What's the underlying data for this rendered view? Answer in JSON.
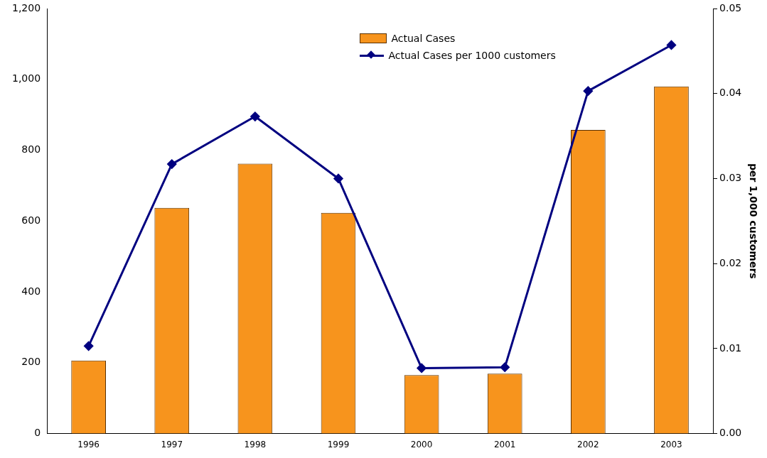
{
  "chart_data": {
    "type": "bar",
    "categories": [
      "1996",
      "1997",
      "1998",
      "1999",
      "2000",
      "2001",
      "2002",
      "2003"
    ],
    "series": [
      {
        "name": "Actual Cases",
        "color": "#f7941d",
        "values": [
          206,
          637,
          762,
          623,
          165,
          169,
          857,
          980
        ]
      },
      {
        "name": "Actual Cases per 1000 customers",
        "type": "line",
        "axis": "y2",
        "color": "#000080",
        "marker": "diamond",
        "values": [
          0.0103,
          0.0317,
          0.0373,
          0.03,
          0.0077,
          0.0078,
          0.0403,
          0.0457
        ]
      }
    ],
    "y2label": "per 1,000 customers",
    "ylim": [
      0,
      1200
    ],
    "yticks": [
      0,
      200,
      400,
      600,
      800,
      {
        "value": 1000,
        "label": "1,000"
      },
      {
        "value": 1200,
        "label": "1,200"
      }
    ],
    "y2lim": [
      0,
      0.05
    ],
    "y2ticks": [
      {
        "value": 0,
        "label": "0.00"
      },
      0.01,
      0.02,
      0.03,
      0.04,
      0.05
    ],
    "grid": false,
    "legend": "top right"
  }
}
